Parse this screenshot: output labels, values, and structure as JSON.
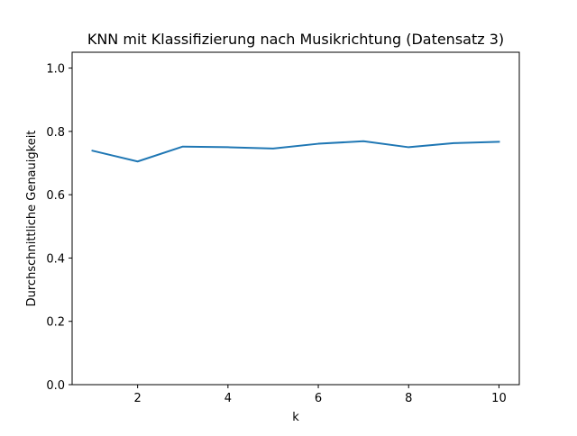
{
  "chart_data": {
    "type": "line",
    "title": "KNN mit Klassifizierung nach Musikrichtung (Datensatz 3)",
    "xlabel": "k",
    "ylabel": "Durchschnittliche Genauigkeit",
    "xlim": [
      0.55,
      10.45
    ],
    "ylim": [
      0.0,
      1.05
    ],
    "xticks": [
      2,
      4,
      6,
      8,
      10
    ],
    "xtick_labels": [
      "2",
      "4",
      "6",
      "8",
      "10"
    ],
    "yticks": [
      0.0,
      0.2,
      0.4,
      0.6,
      0.8,
      1.0
    ],
    "ytick_labels": [
      "0.0",
      "0.2",
      "0.4",
      "0.6",
      "0.8",
      "1.0"
    ],
    "grid": false,
    "series": [
      {
        "color": "#1f77b4",
        "x": [
          1,
          2,
          3,
          4,
          5,
          6,
          7,
          8,
          9,
          10
        ],
        "values": [
          0.739,
          0.705,
          0.752,
          0.75,
          0.746,
          0.761,
          0.769,
          0.75,
          0.763,
          0.767
        ]
      }
    ]
  }
}
